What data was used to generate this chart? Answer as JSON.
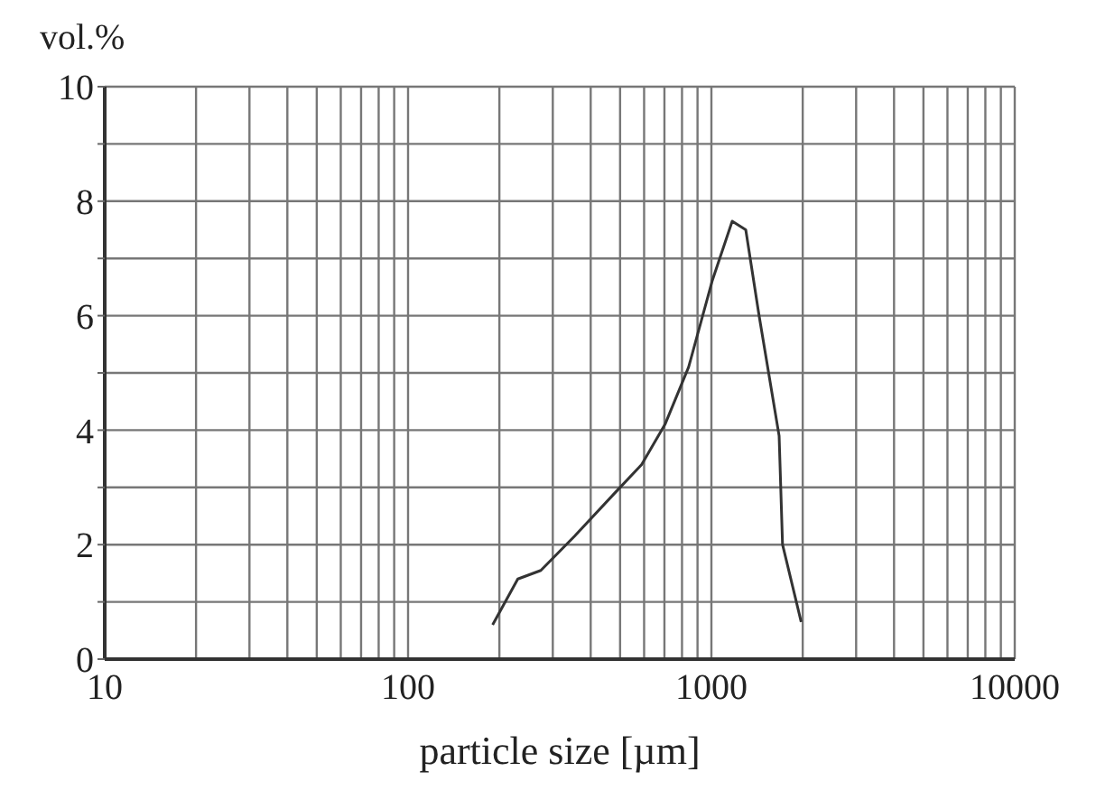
{
  "chart_data": {
    "type": "line",
    "xlabel": "particle size [µm]",
    "ylabel": "vol.%",
    "log": "x",
    "grid": true,
    "marker": "none",
    "line_style": "solid",
    "x": [
      190,
      230,
      274,
      354,
      480,
      589,
      703,
      841,
      1005,
      1171,
      1298,
      1436,
      1672,
      1716,
      1977
    ],
    "series": [
      {
        "color": "#333333",
        "values": [
          0.6,
          1.4,
          1.55,
          2.15,
          2.9,
          3.4,
          4.1,
          5.1,
          6.6,
          7.65,
          7.5,
          6.0,
          3.9,
          2.0,
          0.65
        ]
      }
    ],
    "xlim": [
      10,
      10000
    ],
    "xticks": [
      10,
      {
        "value": 20,
        "label": null
      },
      {
        "value": 30,
        "label": null
      },
      {
        "value": 40,
        "label": null
      },
      {
        "value": 50,
        "label": null
      },
      {
        "value": 60,
        "label": null
      },
      {
        "value": 70,
        "label": null
      },
      {
        "value": 80,
        "label": null
      },
      {
        "value": 90,
        "label": null
      },
      100,
      {
        "value": 200,
        "label": null
      },
      {
        "value": 300,
        "label": null
      },
      {
        "value": 400,
        "label": null
      },
      {
        "value": 500,
        "label": null
      },
      {
        "value": 600,
        "label": null
      },
      {
        "value": 700,
        "label": null
      },
      {
        "value": 800,
        "label": null
      },
      {
        "value": 900,
        "label": null
      },
      1000,
      {
        "value": 2000,
        "label": null
      },
      {
        "value": 3000,
        "label": null
      },
      {
        "value": 4000,
        "label": null
      },
      {
        "value": 5000,
        "label": null
      },
      {
        "value": 6000,
        "label": null
      },
      {
        "value": 7000,
        "label": null
      },
      {
        "value": 8000,
        "label": null
      },
      {
        "value": 9000,
        "label": null
      },
      10000
    ],
    "ylim": [
      0,
      10
    ],
    "yticks": [
      0,
      {
        "value": 1,
        "label": null
      },
      2,
      {
        "value": 3,
        "label": null
      },
      4,
      {
        "value": 5,
        "label": null
      },
      6,
      {
        "value": 7,
        "label": null
      },
      8,
      {
        "value": 9,
        "label": null
      },
      10
    ]
  }
}
